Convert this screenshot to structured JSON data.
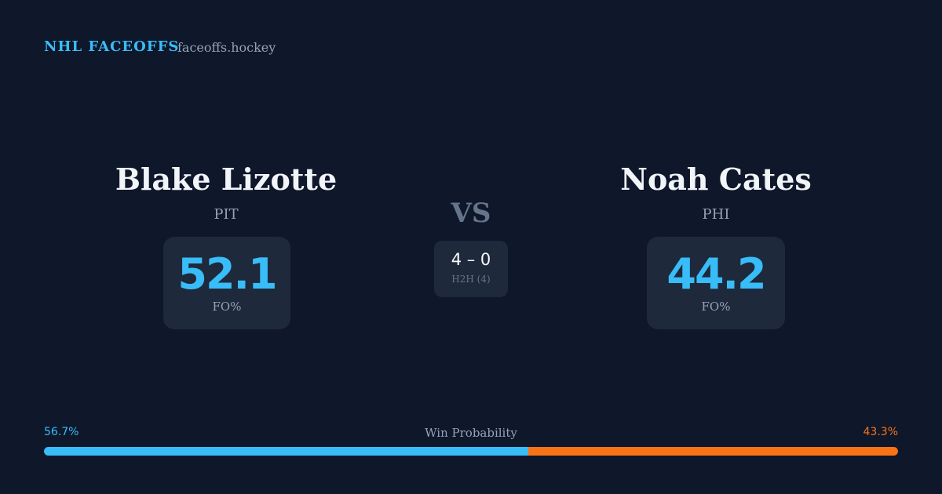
{
  "header": {
    "brand": "NHL FACEOFFS",
    "domain": "faceoffs.hockey"
  },
  "players": [
    {
      "name": "Blake Lizotte",
      "team": "PIT",
      "fo_pct": 52.1,
      "fo_label": "FO%"
    },
    {
      "name": "Noah Cates",
      "team": "PHI",
      "fo_pct": 44.2,
      "fo_label": "FO%"
    }
  ],
  "versus": "VS",
  "h2h": {
    "score": "4 – 0",
    "label": "H2H (4)"
  },
  "win_probability": {
    "title": "Win Probability",
    "left": {
      "value": 56.7,
      "label": "56.7%",
      "color": "#38bdf8"
    },
    "right": {
      "value": 43.3,
      "label": "43.3%",
      "color": "#f97316"
    }
  }
}
